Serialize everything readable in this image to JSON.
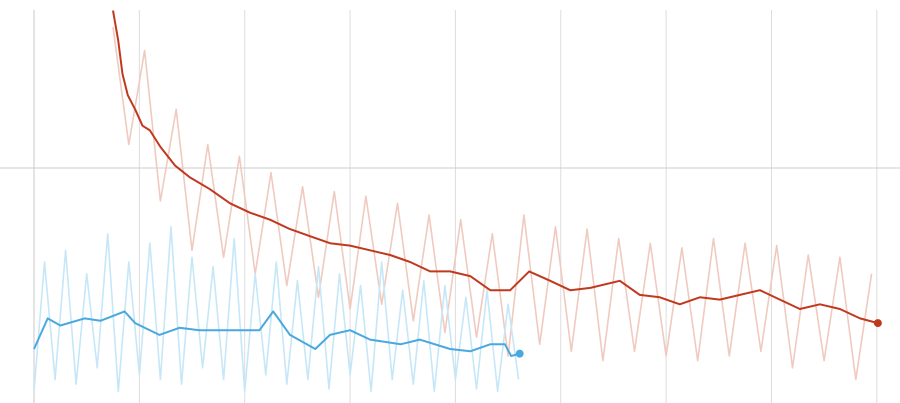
{
  "chart_data": {
    "type": "line",
    "xlim": [
      0,
      822
    ],
    "ylim": [
      0,
      1.715
    ],
    "xticks": [
      0,
      100,
      200,
      300,
      400,
      500,
      600,
      700,
      800
    ],
    "yticks": [
      1
    ],
    "grid": true,
    "series": [
      {
        "color": "#f0cabf",
        "x": [
          75,
          90,
          105,
          120,
          135,
          150,
          165,
          180,
          195,
          210,
          225,
          240,
          255,
          270,
          285,
          300,
          315,
          330,
          345,
          360,
          375,
          390,
          405,
          420,
          435,
          450,
          465,
          480,
          495,
          510,
          525,
          540,
          555,
          570,
          585,
          600,
          615,
          630,
          645,
          660,
          675,
          690,
          705,
          720,
          735,
          750,
          765,
          780,
          795
        ],
        "values": [
          1.6,
          1.1,
          1.5,
          0.86,
          1.25,
          0.65,
          1.1,
          0.62,
          1.05,
          0.55,
          0.98,
          0.5,
          0.92,
          0.45,
          0.9,
          0.4,
          0.88,
          0.42,
          0.85,
          0.35,
          0.8,
          0.3,
          0.78,
          0.28,
          0.72,
          0.2,
          0.8,
          0.25,
          0.75,
          0.22,
          0.74,
          0.18,
          0.7,
          0.22,
          0.68,
          0.2,
          0.66,
          0.18,
          0.7,
          0.2,
          0.68,
          0.22,
          0.67,
          0.15,
          0.63,
          0.18,
          0.62,
          0.1,
          0.55
        ]
      },
      {
        "color": "#c6e7f8",
        "x": [
          0,
          10,
          20,
          30,
          40,
          50,
          60,
          70,
          80,
          90,
          100,
          110,
          120,
          130,
          140,
          150,
          160,
          170,
          180,
          190,
          200,
          210,
          220,
          230,
          240,
          250,
          260,
          270,
          280,
          290,
          300,
          310,
          320,
          330,
          340,
          350,
          360,
          370,
          380,
          390,
          400,
          410,
          420,
          430,
          440,
          450,
          460
        ],
        "values": [
          0.05,
          0.6,
          0.1,
          0.65,
          0.08,
          0.55,
          0.15,
          0.72,
          0.05,
          0.6,
          0.12,
          0.68,
          0.1,
          0.75,
          0.08,
          0.62,
          0.15,
          0.58,
          0.1,
          0.7,
          0.05,
          0.55,
          0.12,
          0.6,
          0.08,
          0.52,
          0.1,
          0.58,
          0.06,
          0.55,
          0.12,
          0.5,
          0.05,
          0.6,
          0.1,
          0.48,
          0.08,
          0.52,
          0.05,
          0.5,
          0.1,
          0.45,
          0.06,
          0.48,
          0.05,
          0.42,
          0.1
        ]
      },
      {
        "color": "#c0391f",
        "x": [
          75,
          80,
          84,
          89,
          96,
          103,
          110,
          120,
          134,
          148,
          167,
          186,
          205,
          224,
          243,
          262,
          281,
          300,
          319,
          338,
          357,
          376,
          395,
          414,
          433,
          452,
          470,
          490,
          509,
          528,
          556,
          575,
          594,
          613,
          632,
          651,
          670,
          689,
          708,
          727,
          746,
          765,
          784,
          801
        ],
        "values": [
          1.67,
          1.54,
          1.4,
          1.31,
          1.25,
          1.18,
          1.16,
          1.09,
          1.01,
          0.96,
          0.91,
          0.85,
          0.81,
          0.78,
          0.74,
          0.71,
          0.68,
          0.67,
          0.65,
          0.63,
          0.6,
          0.56,
          0.56,
          0.54,
          0.48,
          0.48,
          0.56,
          0.52,
          0.48,
          0.49,
          0.52,
          0.46,
          0.45,
          0.42,
          0.45,
          0.44,
          0.46,
          0.48,
          0.44,
          0.4,
          0.42,
          0.4,
          0.36,
          0.34
        ]
      },
      {
        "color": "#4aa8de",
        "x": [
          0,
          13,
          25,
          48,
          63,
          86,
          96,
          119,
          138,
          157,
          186,
          214,
          227,
          243,
          267,
          281,
          300,
          319,
          348,
          366,
          395,
          414,
          433,
          447,
          453,
          461
        ],
        "values": [
          0.23,
          0.36,
          0.33,
          0.36,
          0.35,
          0.39,
          0.34,
          0.29,
          0.32,
          0.31,
          0.31,
          0.31,
          0.39,
          0.29,
          0.23,
          0.29,
          0.31,
          0.27,
          0.25,
          0.27,
          0.23,
          0.22,
          0.25,
          0.25,
          0.2,
          0.21
        ]
      }
    ]
  }
}
